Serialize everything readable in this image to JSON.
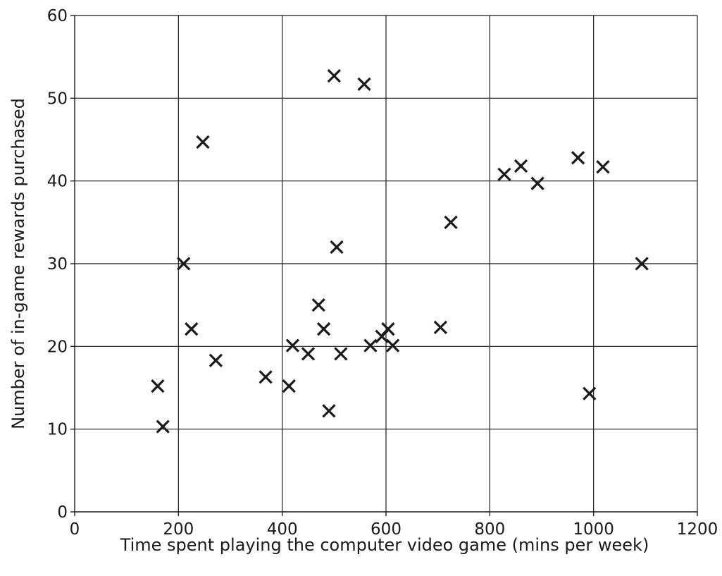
{
  "chart_data": {
    "type": "scatter",
    "title": "",
    "xlabel": "Time spent playing the computer video game (mins per week)",
    "ylabel": "Number of in-game rewards purchased",
    "xlim": [
      0,
      1200
    ],
    "ylim": [
      0,
      60
    ],
    "xticks": [
      0,
      200,
      400,
      600,
      800,
      1000,
      1200
    ],
    "yticks": [
      0,
      10,
      20,
      30,
      40,
      50,
      60
    ],
    "grid": true,
    "marker": "x",
    "marker_color": "#1a1a1a",
    "points": [
      {
        "x": 160,
        "y": 15.2
      },
      {
        "x": 170,
        "y": 10.3
      },
      {
        "x": 210,
        "y": 30.0
      },
      {
        "x": 225,
        "y": 22.1
      },
      {
        "x": 247,
        "y": 44.7
      },
      {
        "x": 272,
        "y": 18.3
      },
      {
        "x": 368,
        "y": 16.3
      },
      {
        "x": 413,
        "y": 15.2
      },
      {
        "x": 420,
        "y": 20.1
      },
      {
        "x": 450,
        "y": 19.1
      },
      {
        "x": 470,
        "y": 25.0
      },
      {
        "x": 480,
        "y": 22.1
      },
      {
        "x": 490,
        "y": 12.2
      },
      {
        "x": 500,
        "y": 52.7
      },
      {
        "x": 505,
        "y": 32.0
      },
      {
        "x": 513,
        "y": 19.1
      },
      {
        "x": 558,
        "y": 51.7
      },
      {
        "x": 570,
        "y": 20.1
      },
      {
        "x": 592,
        "y": 21.2
      },
      {
        "x": 604,
        "y": 22.1
      },
      {
        "x": 613,
        "y": 20.1
      },
      {
        "x": 705,
        "y": 22.3
      },
      {
        "x": 725,
        "y": 35.0
      },
      {
        "x": 828,
        "y": 40.8
      },
      {
        "x": 860,
        "y": 41.8
      },
      {
        "x": 892,
        "y": 39.7
      },
      {
        "x": 970,
        "y": 42.8
      },
      {
        "x": 992,
        "y": 14.3
      },
      {
        "x": 1018,
        "y": 41.7
      },
      {
        "x": 1093,
        "y": 30.0
      }
    ]
  }
}
